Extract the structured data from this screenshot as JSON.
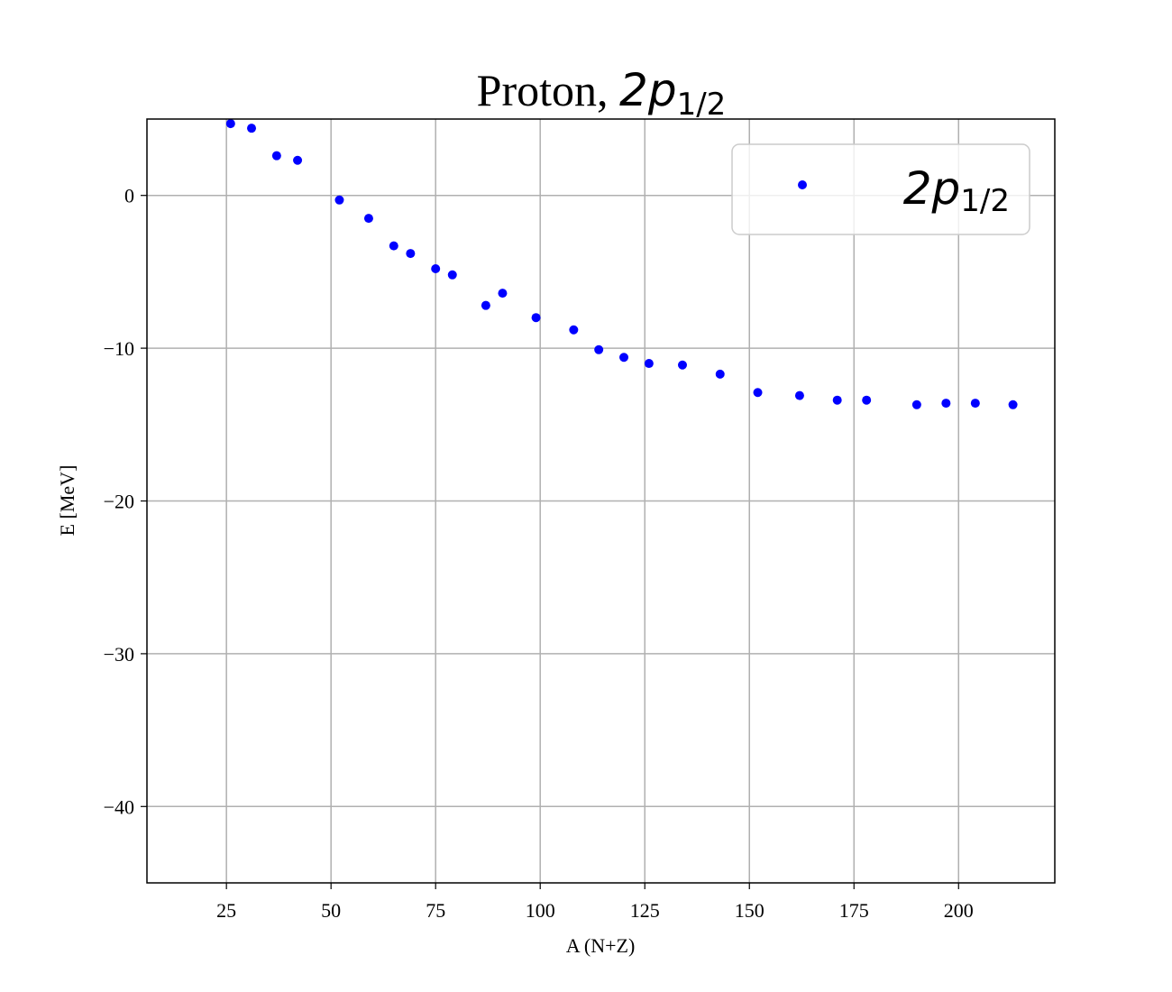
{
  "chart_data": {
    "type": "scatter",
    "title": {
      "prefix": "Proton, ",
      "math_main": "2p",
      "math_sub": "1/2"
    },
    "xlabel": "A (N+Z)",
    "ylabel": "E [MeV]",
    "xlim": [
      6,
      223
    ],
    "ylim": [
      -45,
      5
    ],
    "xticks": [
      25,
      50,
      75,
      100,
      125,
      150,
      175,
      200
    ],
    "yticks": [
      0,
      -10,
      -20,
      -30,
      -40
    ],
    "ytick_labels": [
      "0",
      "−10",
      "−20",
      "−30",
      "−40"
    ],
    "grid": true,
    "legend": {
      "position": "top-right",
      "entries": [
        {
          "main": "2p",
          "sub": "1/2"
        }
      ]
    },
    "series": [
      {
        "color": "#0000ff",
        "x": [
          26,
          31,
          37,
          42,
          52,
          59,
          65,
          69,
          75,
          79,
          87,
          91,
          99,
          108,
          114,
          120,
          126,
          134,
          143,
          152,
          162,
          171,
          178,
          190,
          197,
          204,
          213
        ],
        "y": [
          4.7,
          4.4,
          2.6,
          2.3,
          -0.3,
          -1.5,
          -3.3,
          -3.8,
          -4.8,
          -5.2,
          -7.2,
          -6.4,
          -8.0,
          -8.8,
          -10.1,
          -10.6,
          -11.0,
          -11.1,
          -11.7,
          -12.9,
          -13.1,
          -13.4,
          -13.4,
          -13.7,
          -13.6,
          -13.6,
          -13.7
        ]
      }
    ]
  }
}
